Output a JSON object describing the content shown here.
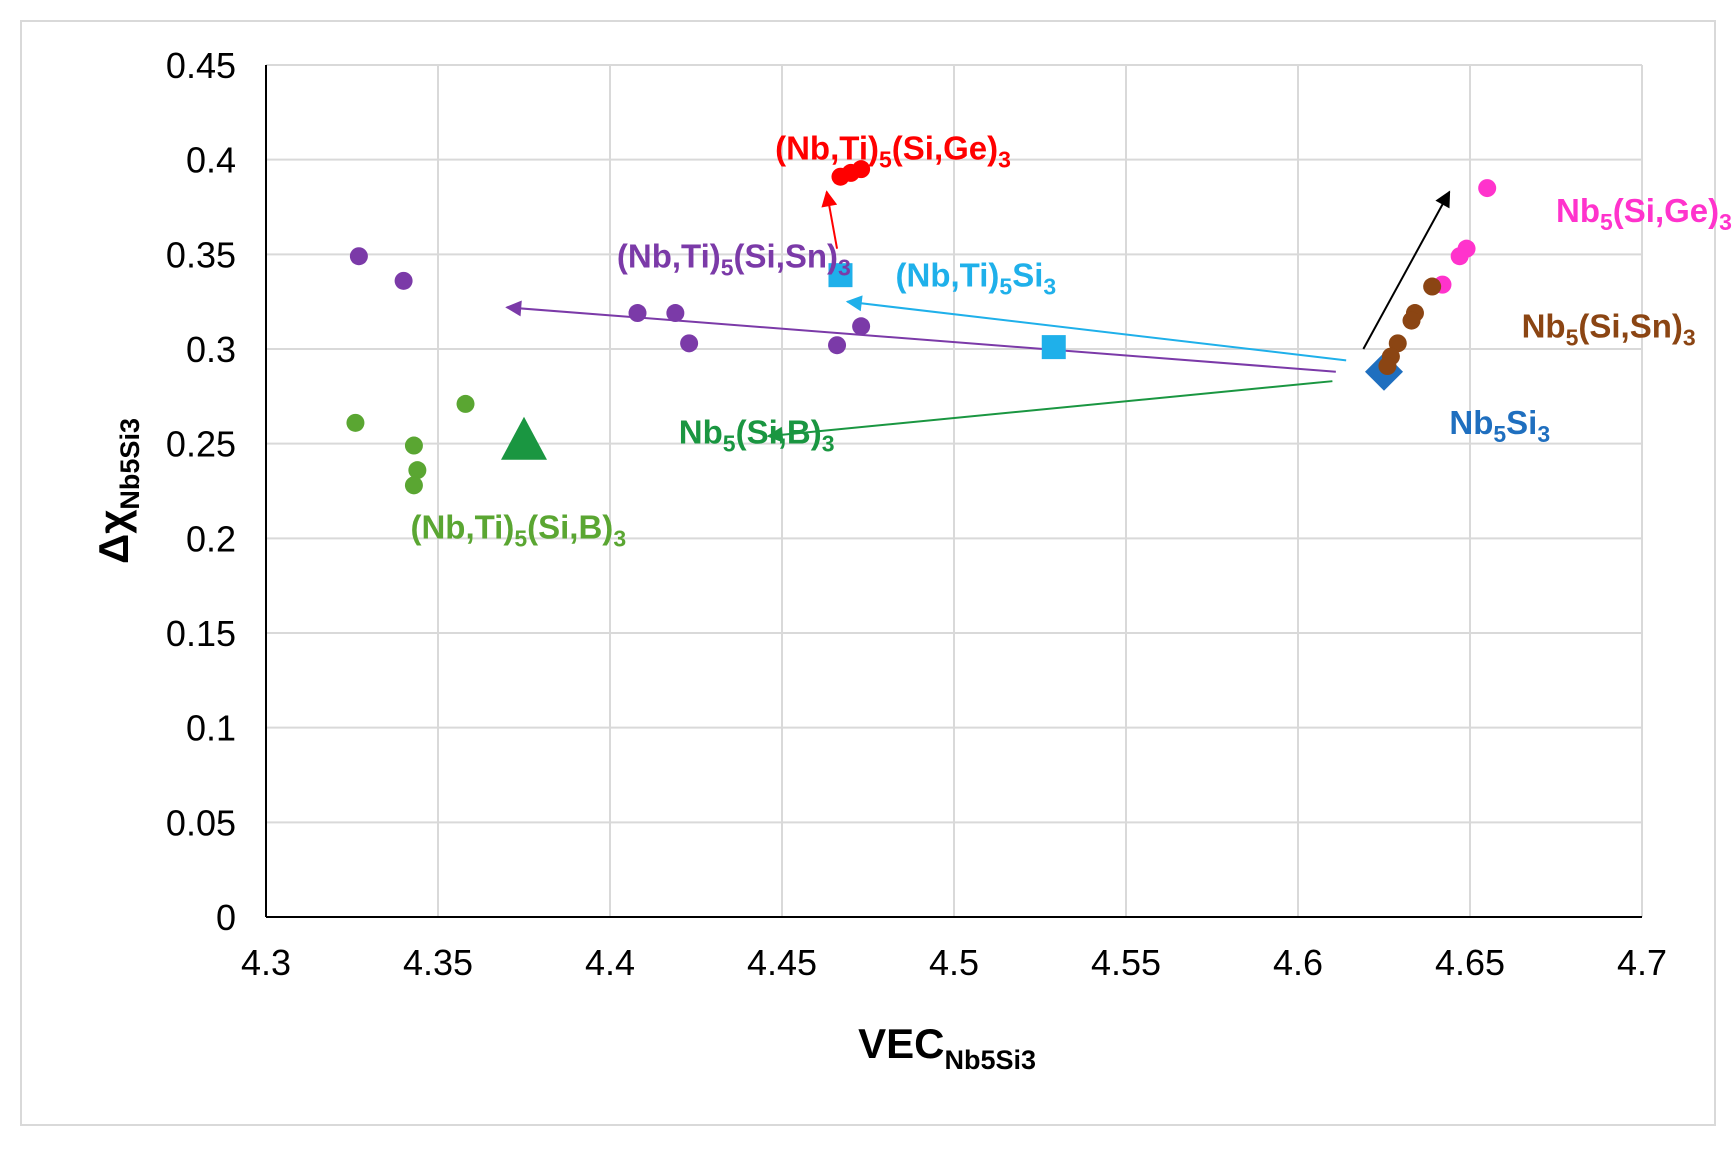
{
  "chart_data": {
    "type": "scatter",
    "xlabel": "VEC",
    "xlabel_sub": "Nb5Si3",
    "ylabel": "Δχ",
    "ylabel_sub": "Nb5Si3",
    "xlim": [
      4.3,
      4.7
    ],
    "ylim": [
      0,
      0.45
    ],
    "xticks": [
      4.3,
      4.35,
      4.4,
      4.45,
      4.5,
      4.55,
      4.6,
      4.65,
      4.7
    ],
    "yticks": [
      0,
      0.05,
      0.1,
      0.15,
      0.2,
      0.25,
      0.3,
      0.35,
      0.4,
      0.45
    ],
    "xtick_labels": [
      "4.3",
      "4.35",
      "4.4",
      "4.45",
      "4.5",
      "4.55",
      "4.6",
      "4.65",
      "4.7"
    ],
    "ytick_labels": [
      "0",
      "0.05",
      "0.1",
      "0.15",
      "0.2",
      "0.25",
      "0.3",
      "0.35",
      "0.4",
      "0.45"
    ],
    "grid": true,
    "series": [
      {
        "name": "Nb5Si3",
        "marker": "diamond",
        "color": "#1f6fbf",
        "points": [
          [
            4.625,
            0.288
          ]
        ]
      },
      {
        "name": "(Nb,Ti)5Si3",
        "marker": "square",
        "color": "#1fb0ea",
        "points": [
          [
            4.467,
            0.339
          ],
          [
            4.529,
            0.301
          ]
        ]
      },
      {
        "name": "Nb5(Si,B)3",
        "marker": "triangle",
        "color": "#1a9641",
        "points": [
          [
            4.375,
            0.251
          ]
        ]
      },
      {
        "name": "(Nb,Ti)5(Si,Ge)3",
        "marker": "circle",
        "color": "#ff0000",
        "points": [
          [
            4.467,
            0.391
          ],
          [
            4.47,
            0.393
          ],
          [
            4.473,
            0.395
          ]
        ]
      },
      {
        "name": "(Nb,Ti)5(Si,Sn)3",
        "marker": "circle",
        "color": "#7b3aa8",
        "points": [
          [
            4.327,
            0.349
          ],
          [
            4.34,
            0.336
          ],
          [
            4.408,
            0.319
          ],
          [
            4.419,
            0.319
          ],
          [
            4.423,
            0.303
          ],
          [
            4.466,
            0.302
          ],
          [
            4.473,
            0.312
          ]
        ]
      },
      {
        "name": "(Nb,Ti)5(Si,B)3",
        "marker": "circle",
        "color": "#5aa632",
        "points": [
          [
            4.326,
            0.261
          ],
          [
            4.358,
            0.271
          ],
          [
            4.343,
            0.249
          ],
          [
            4.344,
            0.236
          ],
          [
            4.343,
            0.228
          ]
        ]
      },
      {
        "name": "Nb5(Si,Ge)3",
        "marker": "circle",
        "color": "#ff33cc",
        "points": [
          [
            4.655,
            0.385
          ],
          [
            4.649,
            0.353
          ],
          [
            4.647,
            0.349
          ],
          [
            4.642,
            0.334
          ]
        ]
      },
      {
        "name": "Nb5(Si,Sn)3",
        "marker": "circle",
        "color": "#8b4513",
        "points": [
          [
            4.639,
            0.333
          ],
          [
            4.634,
            0.319
          ],
          [
            4.633,
            0.315
          ],
          [
            4.629,
            0.303
          ],
          [
            4.627,
            0.296
          ],
          [
            4.626,
            0.291
          ]
        ]
      }
    ],
    "arrows": [
      {
        "color": "#000000",
        "from": [
          4.619,
          0.3
        ],
        "to": [
          4.644,
          0.383
        ]
      },
      {
        "color": "#1fb0ea",
        "from": [
          4.614,
          0.294
        ],
        "to": [
          4.469,
          0.325
        ]
      },
      {
        "color": "#7b3aa8",
        "from": [
          4.611,
          0.288
        ],
        "to": [
          4.37,
          0.322
        ]
      },
      {
        "color": "#1a9641",
        "from": [
          4.61,
          0.283
        ],
        "to": [
          4.446,
          0.254
        ]
      },
      {
        "color": "#ff0000",
        "from": [
          4.466,
          0.353
        ],
        "to": [
          4.463,
          0.383
        ]
      }
    ],
    "labels": [
      {
        "base": "(Nb,Ti)",
        "sub1": "5",
        "mid": "(Si,Ge)",
        "sub2": "3",
        "color": "#ff0000",
        "x": 4.448,
        "y": 0.4
      },
      {
        "base": "(Nb,Ti)",
        "sub1": "5",
        "mid": "(Si,Sn)",
        "sub2": "3",
        "color": "#7b3aa8",
        "x": 4.402,
        "y": 0.343
      },
      {
        "base": "(Nb,Ti)",
        "sub1": "5",
        "mid": "Si",
        "sub2": "3",
        "color": "#1fb0ea",
        "x": 4.483,
        "y": 0.333
      },
      {
        "base": "Nb",
        "sub1": "5",
        "mid": "(Si,Ge)",
        "sub2": "3",
        "color": "#ff33cc",
        "x": 4.675,
        "y": 0.367
      },
      {
        "base": "Nb",
        "sub1": "5",
        "mid": "(Si,Sn)",
        "sub2": "3",
        "color": "#8b4513",
        "x": 4.665,
        "y": 0.306
      },
      {
        "base": "Nb",
        "sub1": "5",
        "mid": "Si",
        "sub2": "3",
        "color": "#1f6fbf",
        "x": 4.644,
        "y": 0.255
      },
      {
        "base": "Nb",
        "sub1": "5",
        "mid": "(Si,B)",
        "sub2": "3",
        "color": "#1a9641",
        "x": 4.42,
        "y": 0.25
      },
      {
        "base": "(Nb,Ti)",
        "sub1": "5",
        "mid": "(Si,B)",
        "sub2": "3",
        "color": "#5aa632",
        "x": 4.342,
        "y": 0.2
      }
    ]
  }
}
